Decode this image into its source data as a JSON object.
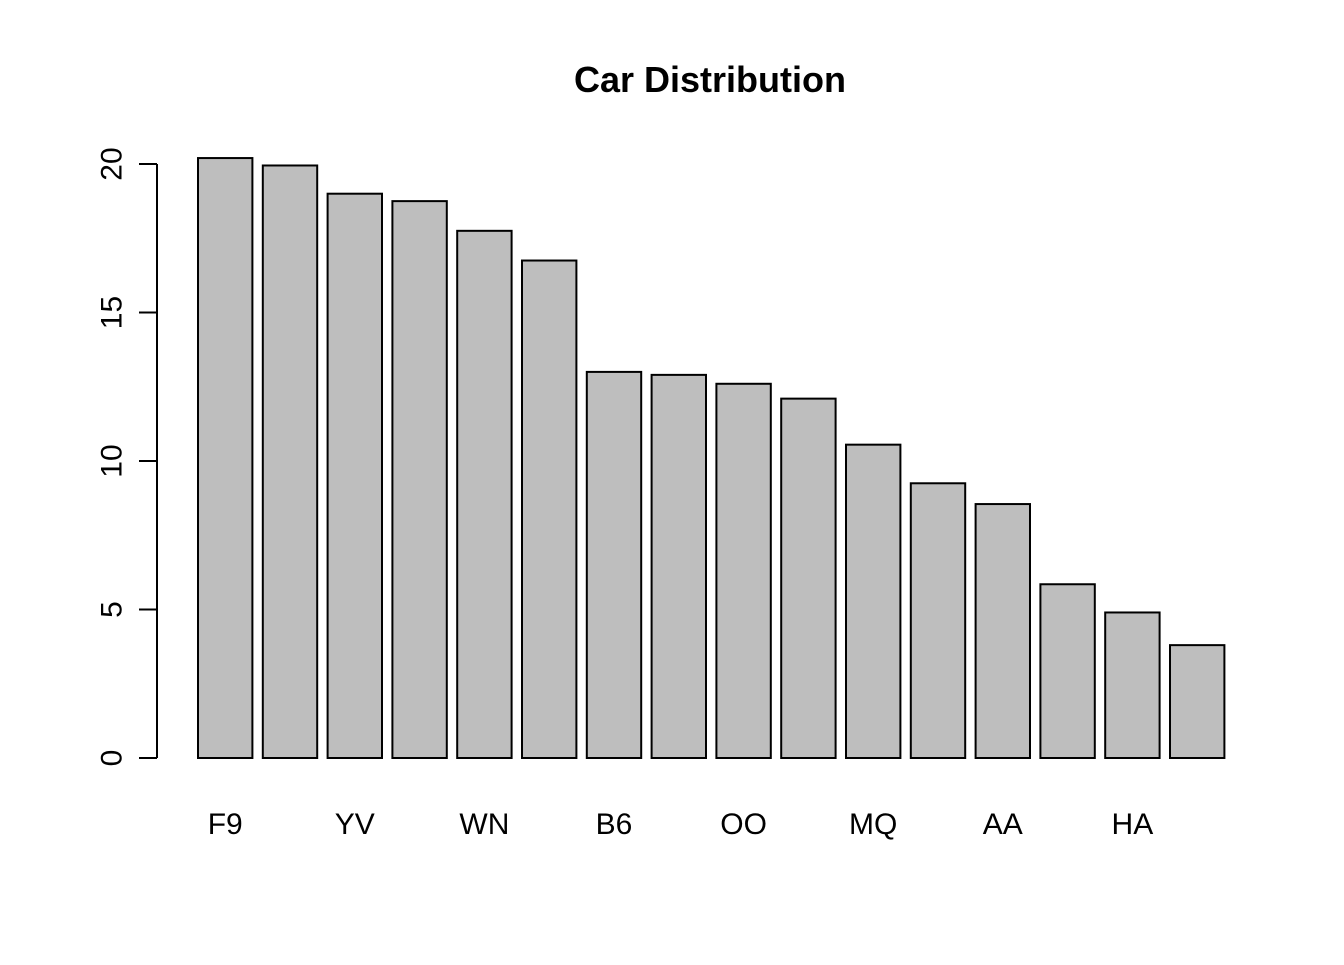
{
  "chart_data": {
    "type": "bar",
    "title": "Car Distribution",
    "xlabel": "",
    "ylabel": "",
    "categories": [
      "F9",
      "",
      "YV",
      "",
      "WN",
      "",
      "B6",
      "",
      "OO",
      "",
      "MQ",
      "",
      "AA",
      "",
      "HA",
      ""
    ],
    "values": [
      20.2,
      19.95,
      19.0,
      18.75,
      17.75,
      16.75,
      13.0,
      12.9,
      12.6,
      12.1,
      10.55,
      9.25,
      8.55,
      5.85,
      4.9,
      3.8
    ],
    "ylim": [
      0,
      20
    ],
    "yticks": [
      0,
      5,
      10,
      15,
      20
    ],
    "grid": false,
    "legend": "none",
    "colors": {
      "bar_fill": "#bebebe",
      "bar_stroke": "#000000",
      "axis": "#000000",
      "text": "#000000",
      "background": "#ffffff"
    }
  }
}
